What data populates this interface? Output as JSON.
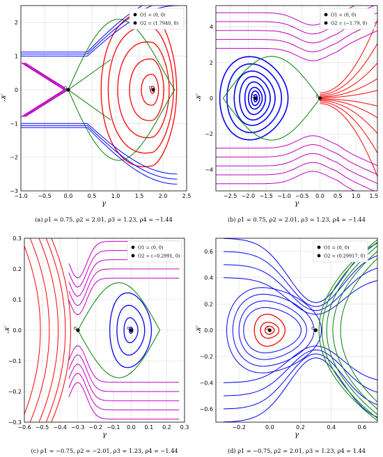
{
  "chart_data": [
    {
      "type": "phase-portrait",
      "caption": "(a) ρ1 = 0.75, ρ2 = 2.01, ρ3 = 1.23, ρ4 = −1.44",
      "params": {
        "rho1": 0.75,
        "rho2": 2.01,
        "rho3": 1.23,
        "rho4": -1.44
      },
      "xlabel": "γ",
      "ylabel": "𝒦",
      "xlim": [
        -1.0,
        2.5
      ],
      "ylim": [
        -3.0,
        2.5
      ],
      "xticks": [
        -1.0,
        -0.5,
        0.0,
        0.5,
        1.0,
        1.5,
        2.0,
        2.5
      ],
      "yticks": [
        -3,
        -2,
        -1,
        0,
        1,
        2
      ],
      "xtick_labels": [
        "−1.0",
        "−0.5",
        "0.0",
        "0.5",
        "1.0",
        "1.5",
        "2.0",
        "2.5"
      ],
      "ytick_labels": [
        "−3",
        "−2",
        "−1",
        "0",
        "1",
        "2"
      ],
      "grid": true,
      "legend_position": "top-right",
      "equilibria": [
        {
          "label": "O1 = (0, 0)",
          "x": 0.0,
          "y": 0.0
        },
        {
          "label": "O2 = (1.7940, 0)",
          "x": 1.794,
          "y": 0.0
        }
      ],
      "colors": {
        "red": "#ff0000",
        "blue": "#0000ff",
        "magenta": "#c000c0",
        "green": "#008000"
      }
    },
    {
      "type": "phase-portrait",
      "caption": "(b) ρ1 = 0.75, ρ2 = 2.01, ρ3 = 1.23, ρ4 = −1.44",
      "params": {
        "rho1": 0.75,
        "rho2": 2.01,
        "rho3": 1.23,
        "rho4": -1.44
      },
      "xlabel": "γ",
      "ylabel": "𝒦",
      "xlim": [
        -2.9,
        1.6
      ],
      "ylim": [
        -5.2,
        5.2
      ],
      "xticks": [
        -2.5,
        -2.0,
        -1.5,
        -1.0,
        -0.5,
        0.0,
        0.5,
        1.0,
        1.5
      ],
      "yticks": [
        -4,
        -2,
        0,
        2,
        4
      ],
      "xtick_labels": [
        "−2.5",
        "−2.0",
        "−1.5",
        "−1.0",
        "−0.5",
        "0.0",
        "0.5",
        "1.0",
        "1.5"
      ],
      "ytick_labels": [
        "−4",
        "−2",
        "0",
        "2",
        "4"
      ],
      "grid": true,
      "legend_position": "top-right",
      "equilibria": [
        {
          "label": "O1 = (0, 0)",
          "x": 0.0,
          "y": 0.0
        },
        {
          "label": "O2 = (−1.79, 0)",
          "x": -1.79,
          "y": 0.0
        }
      ],
      "colors": {
        "red": "#ff0000",
        "blue": "#0000ff",
        "magenta": "#c000c0",
        "green": "#008000"
      }
    },
    {
      "type": "phase-portrait",
      "caption": "(c) ρ1 = −0.75, ρ2 = −2.01, ρ3 = 1.23, ρ4 = −1.44",
      "params": {
        "rho1": -0.75,
        "rho2": -2.01,
        "rho3": 1.23,
        "rho4": -1.44
      },
      "xlabel": "γ",
      "ylabel": "𝒦",
      "xlim": [
        -0.6,
        0.3
      ],
      "ylim": [
        -0.3,
        0.3
      ],
      "xticks": [
        -0.6,
        -0.5,
        -0.4,
        -0.3,
        -0.2,
        -0.1,
        0.0,
        0.1,
        0.2,
        0.3
      ],
      "yticks": [
        -0.3,
        -0.2,
        -0.1,
        0.0,
        0.1,
        0.2,
        0.3
      ],
      "xtick_labels": [
        "−0.6",
        "−0.5",
        "−0.4",
        "−0.3",
        "−0.2",
        "−0.1",
        "0.0",
        "0.1",
        "0.2",
        "0.3"
      ],
      "ytick_labels": [
        "−0.3",
        "−0.2",
        "−0.1",
        "0.0",
        "0.1",
        "0.2",
        "0.3"
      ],
      "grid": true,
      "legend_position": "top-right",
      "equilibria": [
        {
          "label": "O1 = (0, 0)",
          "x": 0.0,
          "y": 0.0
        },
        {
          "label": "O2 = (−0.2991, 0)",
          "x": -0.2991,
          "y": 0.0
        }
      ],
      "colors": {
        "red": "#ff0000",
        "blue": "#0000ff",
        "magenta": "#c000c0",
        "green": "#008000"
      }
    },
    {
      "type": "phase-portrait",
      "caption": "(d) ρ1 = −0.75, ρ2 = 2.01, ρ3 = 1.23, ρ4 = 1.44",
      "params": {
        "rho1": -0.75,
        "rho2": 2.01,
        "rho3": 1.23,
        "rho4": 1.44
      },
      "xlabel": "γ",
      "ylabel": "𝒦",
      "xlim": [
        -0.35,
        0.7
      ],
      "ylim": [
        -0.7,
        0.7
      ],
      "xticks": [
        -0.2,
        0.0,
        0.2,
        0.4,
        0.6
      ],
      "yticks": [
        -0.6,
        -0.4,
        -0.2,
        0.0,
        0.2,
        0.4,
        0.6
      ],
      "xtick_labels": [
        "−0.2",
        "0.0",
        "0.2",
        "0.4",
        "0.6"
      ],
      "ytick_labels": [
        "−0.6",
        "−0.4",
        "−0.2",
        "0.0",
        "0.2",
        "0.4",
        "0.6"
      ],
      "grid": true,
      "legend_position": "top-left",
      "equilibria": [
        {
          "label": "O1 = (0, 0)",
          "x": 0.0,
          "y": 0.0
        },
        {
          "label": "O2 = (0.29917, 0)",
          "x": 0.29917,
          "y": 0.0
        }
      ],
      "colors": {
        "red": "#ff0000",
        "blue": "#0000ff",
        "magenta": "#c000c0",
        "green": "#008000"
      }
    }
  ]
}
